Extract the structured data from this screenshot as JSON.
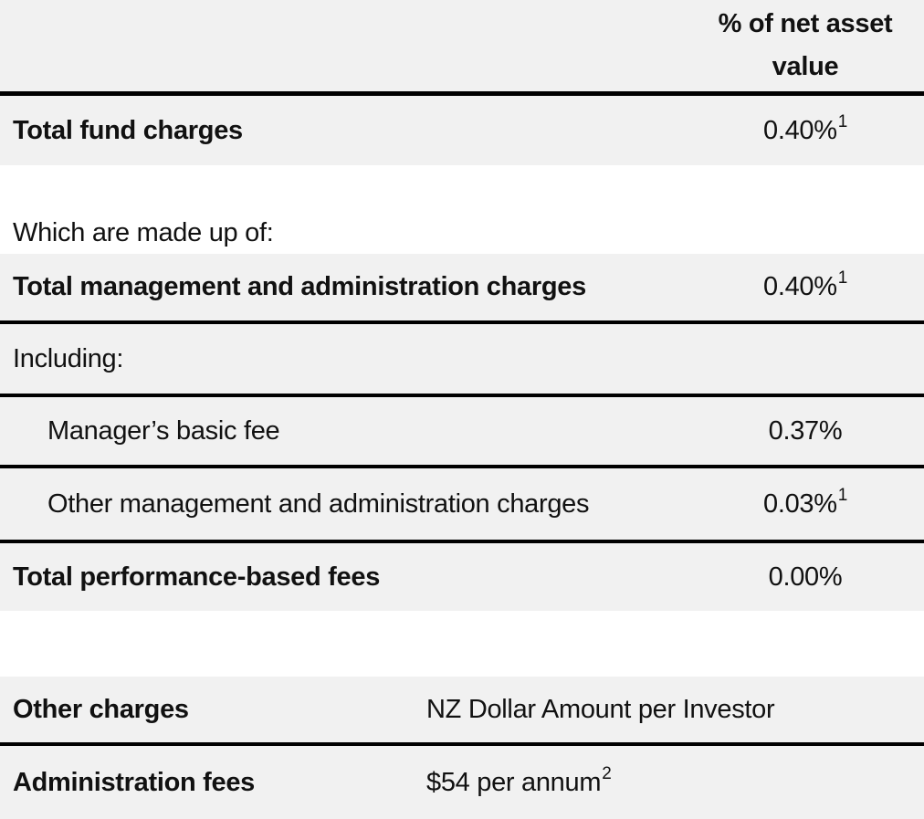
{
  "colors": {
    "row_background": "#f1f1f1",
    "rule": "#000000",
    "text": "#111111",
    "page_background": "#ffffff"
  },
  "fees_table": {
    "value_column_header": {
      "line1": "% of net asset",
      "line2": "value"
    },
    "interstitial_note": "Which are made up of:",
    "rows": [
      {
        "label": "Total fund charges",
        "value": "0.40%",
        "superscript": "1"
      },
      {
        "label": "Total management and administration charges",
        "value": "0.40%",
        "superscript": "1"
      },
      {
        "label": "Including:",
        "value": ""
      },
      {
        "label": "Manager’s basic fee",
        "value": "0.37%"
      },
      {
        "label": "Other management and administration charges",
        "value": "0.03%",
        "superscript": "1"
      },
      {
        "label": "Total performance-based fees",
        "value": "0.00%"
      }
    ]
  },
  "other_charges_table": {
    "header": {
      "label": "Other charges",
      "value": "NZ Dollar Amount per Investor"
    },
    "rows": [
      {
        "label": "Administration fees",
        "value": "$54 per annum",
        "superscript": "2"
      }
    ]
  }
}
